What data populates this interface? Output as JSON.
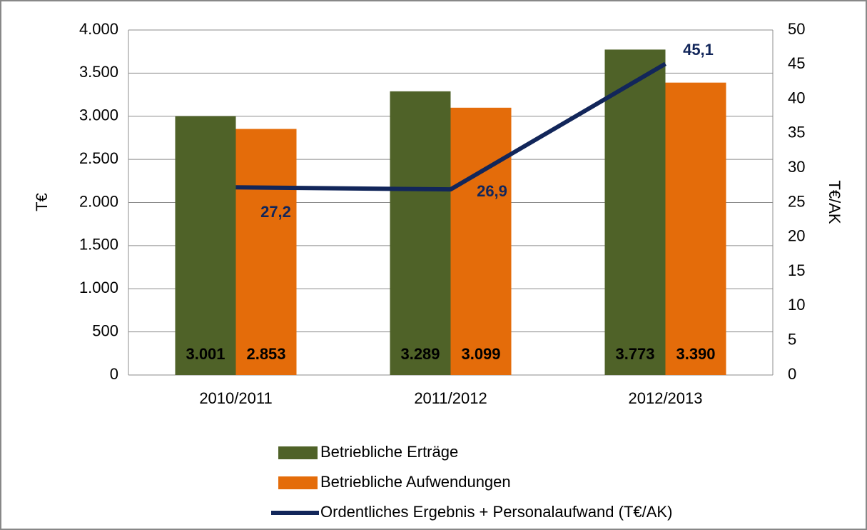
{
  "chart_data": {
    "type": "bar",
    "categories": [
      "2010/2011",
      "2011/2012",
      "2012/2013"
    ],
    "y_label": "T€",
    "y2_label": "T€/AK",
    "ylim": [
      0,
      4000
    ],
    "yticks": [
      0,
      500,
      {
        "value": 1000,
        "label": "1.000"
      },
      {
        "value": 1500,
        "label": "1.500"
      },
      {
        "value": 2000,
        "label": "2.000"
      },
      {
        "value": 2500,
        "label": "2.500"
      },
      {
        "value": 3000,
        "label": "3.000"
      },
      {
        "value": 3500,
        "label": "3.500"
      },
      {
        "value": 4000,
        "label": "4.000"
      }
    ],
    "y2lim": [
      0,
      50
    ],
    "y2ticks": [
      0,
      5,
      10,
      15,
      20,
      25,
      30,
      35,
      40,
      45,
      50
    ],
    "grid": true,
    "legend": "bottom",
    "series": [
      {
        "name": "Betriebliche Erträge",
        "type": "bar",
        "color": "#4f6228",
        "values": [
          3001,
          3289,
          3773
        ],
        "value_labels": [
          "3.001",
          "3.289",
          "3.773"
        ]
      },
      {
        "name": "Betriebliche Aufwendungen",
        "type": "bar",
        "color": "#e46c0a",
        "values": [
          2853,
          3099,
          3390
        ],
        "value_labels": [
          "2.853",
          "3.099",
          "3.390"
        ]
      },
      {
        "name": "Ordentliches Ergebnis + Personalaufwand (T€/AK)",
        "type": "line",
        "axis": "y2",
        "color": "#12265a",
        "values": [
          27.2,
          26.9,
          45.1
        ],
        "value_labels": [
          "27,2",
          "26,9",
          "45,1"
        ]
      }
    ]
  }
}
